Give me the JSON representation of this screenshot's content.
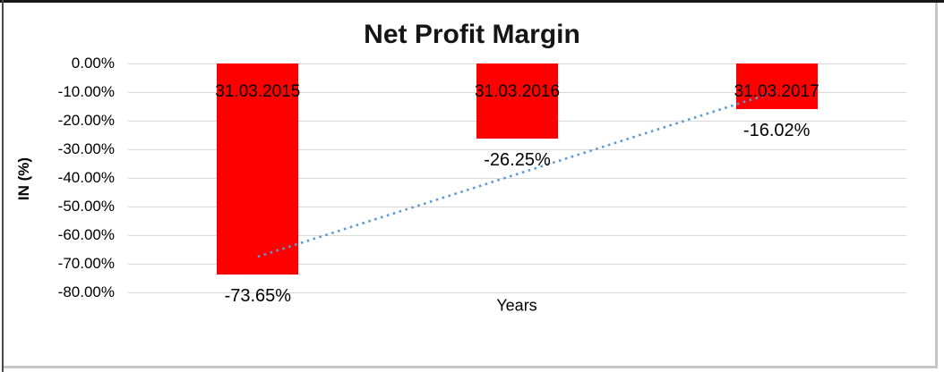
{
  "chart_data": {
    "type": "bar",
    "title": "Net Profit Margin",
    "categories": [
      "31.03.2015",
      "31.03.2016",
      "31.03.2017"
    ],
    "values": [
      -73.65,
      -26.25,
      -16.02
    ],
    "value_labels": [
      "-73.65%",
      "-26.25%",
      "-16.02%"
    ],
    "xlabel": "Years",
    "ylabel": "IN (%)",
    "ylim": [
      -80,
      0
    ],
    "ytick_step": 10,
    "ytick_labels": [
      "0.00%",
      "-10.00%",
      "-20.00%",
      "-30.00%",
      "-40.00%",
      "-50.00%",
      "-60.00%",
      "-70.00%",
      "-80.00%"
    ],
    "grid": true,
    "legend": "none",
    "bar_color": "#FF0000",
    "gridline_color": "#D9D9D9",
    "trendline": {
      "kind": "linear",
      "style": "dotted",
      "color": "#5B9BD5",
      "start_value": -67.5,
      "end_value": -9.8
    }
  }
}
